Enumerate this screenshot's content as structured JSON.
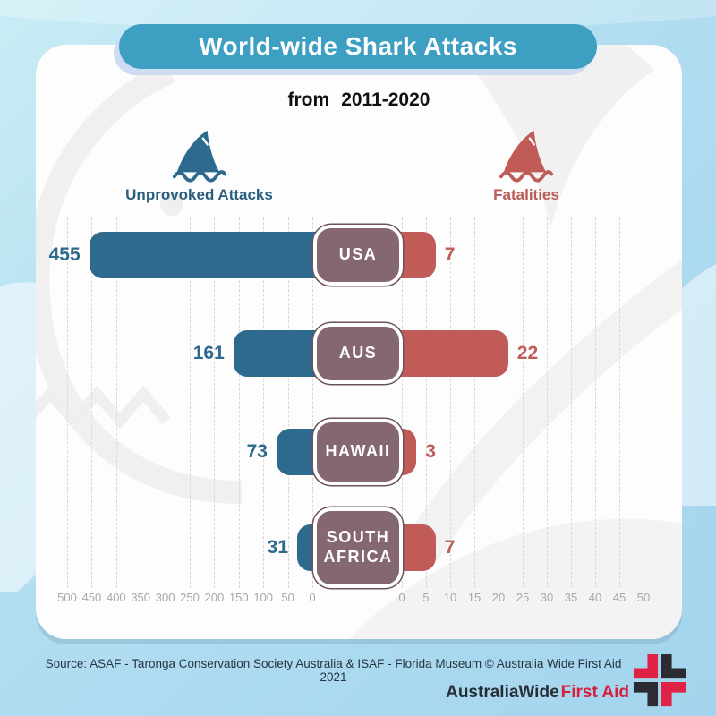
{
  "title": "World-wide Shark Attacks",
  "subtitle_prefix": "from",
  "subtitle_range": "2011-2020",
  "legend": {
    "attacks_label": "Unprovoked Attacks",
    "fatalities_label": "Fatalities"
  },
  "chart_data": {
    "type": "bar",
    "orientation": "horizontal-diverging",
    "title": "World-wide Shark Attacks from 2011-2020",
    "categories": [
      "USA",
      "AUS",
      "HAWAII",
      "SOUTH AFRICA"
    ],
    "series": [
      {
        "name": "Unprovoked Attacks",
        "color": "#2e6a8e",
        "side": "left",
        "values": [
          455,
          161,
          73,
          31
        ]
      },
      {
        "name": "Fatalities",
        "color": "#c05b58",
        "side": "right",
        "values": [
          7,
          22,
          3,
          7
        ]
      }
    ],
    "left_axis": {
      "ticks": [
        500,
        450,
        400,
        350,
        300,
        250,
        200,
        150,
        100,
        50,
        0
      ],
      "max": 500
    },
    "right_axis": {
      "ticks": [
        0,
        5,
        10,
        15,
        20,
        25,
        30,
        35,
        40,
        45,
        50
      ],
      "max": 50
    },
    "grid": "vertical-dashed",
    "legend_position": "top"
  },
  "footer": {
    "source": "Source: ASAF - Taronga Conservation Society Australia & ISAF - Florida Museum © Australia Wide First Aid 2021",
    "brand_part1": "AustraliaWide",
    "brand_part2": "First Aid"
  },
  "colors": {
    "title_pill": "#3da0c3",
    "attacks_blue": "#2e6a8e",
    "fatalities_red": "#c05b58",
    "category_box": "#85686f",
    "background_blue": "#a4d4ed",
    "brand_red": "#d61f3f"
  }
}
